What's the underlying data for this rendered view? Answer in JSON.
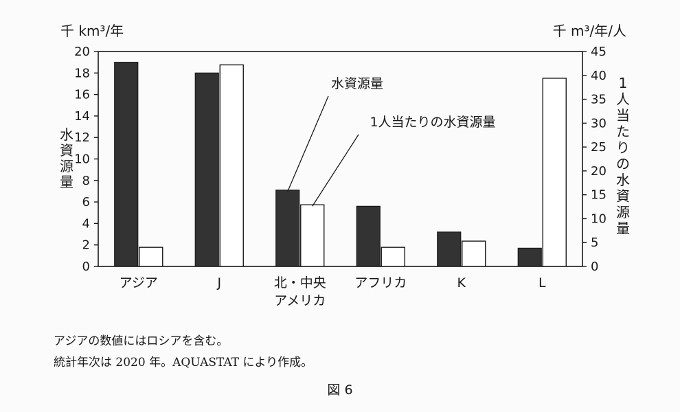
{
  "chart_data": {
    "type": "bar",
    "categories": [
      "アジア",
      "J",
      "北・中央\nアメリカ",
      "アフリカ",
      "K",
      "L"
    ],
    "series": [
      {
        "name": "水資源量",
        "axis": "left",
        "color": "#333333",
        "values": [
          19.0,
          18.0,
          7.1,
          5.6,
          3.2,
          1.7
        ]
      },
      {
        "name": "1人当たりの水資源量",
        "axis": "right",
        "color": "#ffffff",
        "values": [
          4.0,
          42.2,
          12.9,
          4.0,
          5.3,
          39.4
        ]
      }
    ],
    "y_left": {
      "label": "水資源量",
      "unit": "千 km³/年",
      "lim": [
        0,
        20
      ],
      "ticks": [
        "0",
        "2",
        "4",
        "6",
        "8",
        "10",
        "12",
        "14",
        "16",
        "18",
        "20"
      ]
    },
    "y_right": {
      "label": "1人当たりの水資源量",
      "unit": "千 m³/年/人",
      "lim": [
        0,
        45
      ],
      "ticks": [
        "0",
        "5",
        "10",
        "15",
        "20",
        "25",
        "30",
        "35",
        "40",
        "45"
      ]
    },
    "annotations": [
      {
        "text": "水資源量",
        "points_to": {
          "category": 2,
          "series": 0
        }
      },
      {
        "text": "1人当たりの水資源量",
        "points_to": {
          "category": 2,
          "series": 1
        }
      }
    ],
    "grid": false,
    "legend": "none"
  },
  "notes": [
    "アジアの数値にはロシアを含む。",
    "統計年次は 2020 年。AQUASTAT により作成。"
  ],
  "caption": "図 6"
}
